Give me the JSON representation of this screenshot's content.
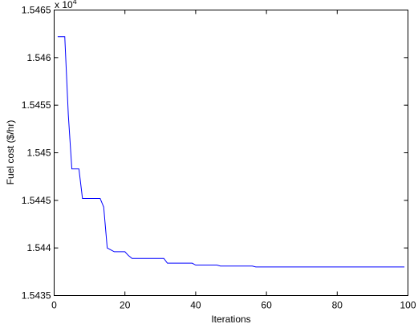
{
  "chart_data": {
    "type": "line",
    "xlabel": "Iterations",
    "ylabel": "Fuel cost ($/hr)",
    "y_multiplier": {
      "base": "x 10",
      "exponent": "4"
    },
    "x": [
      1,
      3,
      4,
      5,
      7,
      8,
      13,
      14,
      15,
      16,
      17,
      20,
      21,
      22,
      31,
      32,
      39,
      40,
      46,
      47,
      56,
      57,
      99
    ],
    "values": [
      1.54622,
      1.54622,
      1.5454,
      1.54483,
      1.54483,
      1.54452,
      1.54452,
      1.54443,
      1.544,
      1.54398,
      1.54396,
      1.54396,
      1.54392,
      1.54389,
      1.54389,
      1.54384,
      1.54384,
      1.54382,
      1.54382,
      1.54381,
      1.54381,
      1.5438,
      1.5438
    ],
    "color": "#0000ff",
    "xlim": [
      0,
      100
    ],
    "xticks": [
      0,
      20,
      40,
      60,
      80,
      100
    ],
    "ylim": [
      1.5435,
      1.5465
    ],
    "yticks": [
      1.5435,
      1.544,
      1.5445,
      1.545,
      1.5455,
      1.546,
      1.5465
    ],
    "grid": false
  }
}
